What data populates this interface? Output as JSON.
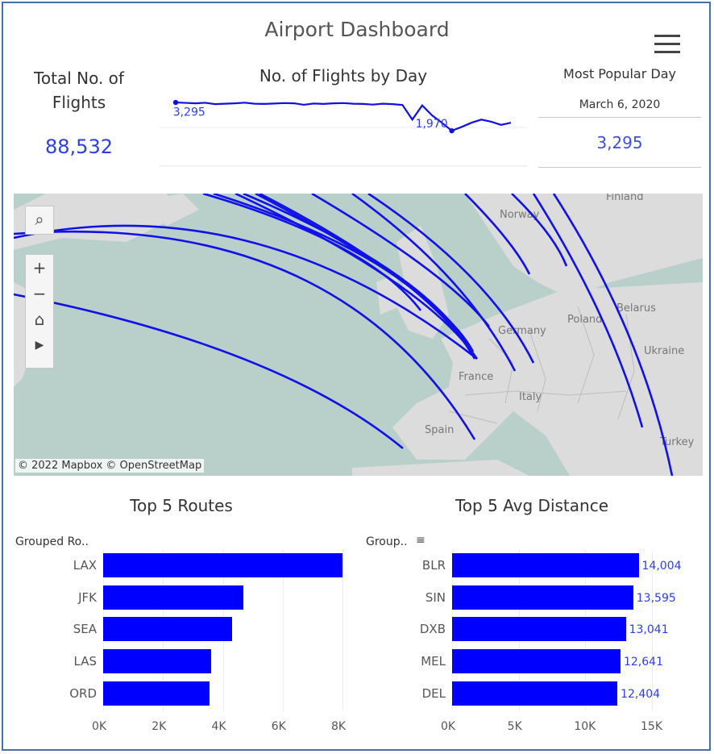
{
  "title": "Airport Dashboard",
  "kpi": {
    "label": "Total No. of Flights",
    "value": "88,532"
  },
  "spark": {
    "title": "No. of Flights by Day",
    "max_label": "3,295",
    "min_label": "1,970",
    "values": [
      3310,
      3290,
      3270,
      3295,
      3230,
      3250,
      3270,
      3300,
      3250,
      3240,
      3260,
      3280,
      3270,
      3200,
      3260,
      3240,
      3270,
      3280,
      3250,
      3240,
      3210,
      3250,
      3230,
      3190,
      2500,
      3170,
      2700,
      2350,
      1970,
      2150,
      2350,
      2500,
      2400,
      2250,
      2350
    ]
  },
  "most_popular": {
    "title": "Most Popular Day",
    "date": "March 6, 2020",
    "value": "3,295"
  },
  "map": {
    "attribution": "© 2022 Mapbox  © OpenStreetMap",
    "labels": [
      "Finland",
      "Norway",
      "Belarus",
      "Poland",
      "Germany",
      "Ukraine",
      "France",
      "Italy",
      "Spain",
      "Turkey"
    ],
    "controls": {
      "search": "⌕",
      "zoom_in": "+",
      "zoom_out": "−",
      "home": "⌂",
      "play": "▶"
    }
  },
  "chart_data": [
    {
      "type": "bar",
      "title": "Top 5 Routes",
      "axis_header": "Grouped Ro..",
      "categories": [
        "LAX",
        "JFK",
        "SEA",
        "LAS",
        "ORD"
      ],
      "values": [
        8000,
        4700,
        4300,
        3600,
        3550
      ],
      "xlim": [
        0,
        8000
      ],
      "ticks": [
        "0K",
        "2K",
        "4K",
        "6K",
        "8K"
      ]
    },
    {
      "type": "bar",
      "title": "Top 5 Avg Distance",
      "axis_header": "Group..",
      "categories": [
        "BLR",
        "SIN",
        "DXB",
        "MEL",
        "DEL"
      ],
      "values": [
        14004,
        13595,
        13041,
        12641,
        12404
      ],
      "labels": [
        "14,004",
        "13,595",
        "13,041",
        "12,641",
        "12,404"
      ],
      "xlim": [
        0,
        15000
      ],
      "ticks": [
        "0K",
        "5K",
        "10K",
        "15K"
      ]
    }
  ]
}
